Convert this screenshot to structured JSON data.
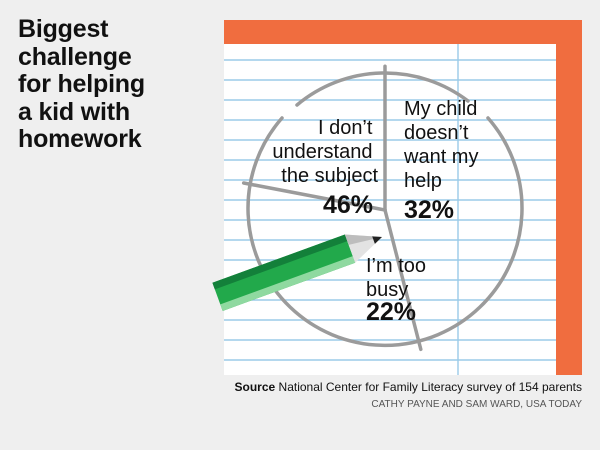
{
  "title_lines": [
    "Biggest",
    "challenge",
    "for helping",
    "a kid with",
    "homework"
  ],
  "chart_data": {
    "type": "pie",
    "categories": [
      "I don’t understand the subject",
      "My child doesn’t want my help",
      "I’m too busy"
    ],
    "values": [
      46,
      32,
      22
    ],
    "value_labels": [
      "46%",
      "32%",
      "22%"
    ],
    "label_lines": [
      [
        "I don’t",
        "understand",
        "the subject"
      ],
      [
        "My child",
        "doesn’t",
        "want my",
        "help"
      ],
      [
        "I’m too",
        "busy"
      ]
    ]
  },
  "source": {
    "label": "Source",
    "text": "National Center for Family Literacy survey of 154 parents"
  },
  "credit": "CATHY PAYNE AND SAM WARD, USA TODAY",
  "colors": {
    "background": "#efefef",
    "paper": "#ffffff",
    "paper_border": "#f06d3f",
    "ruled_line": "#9bcbe8",
    "pie_stroke": "#9b9b9b",
    "pencil_green": "#22a94b",
    "text": "#111111"
  },
  "icons": [
    "notebook-paper-illustration",
    "pencil-illustration"
  ]
}
